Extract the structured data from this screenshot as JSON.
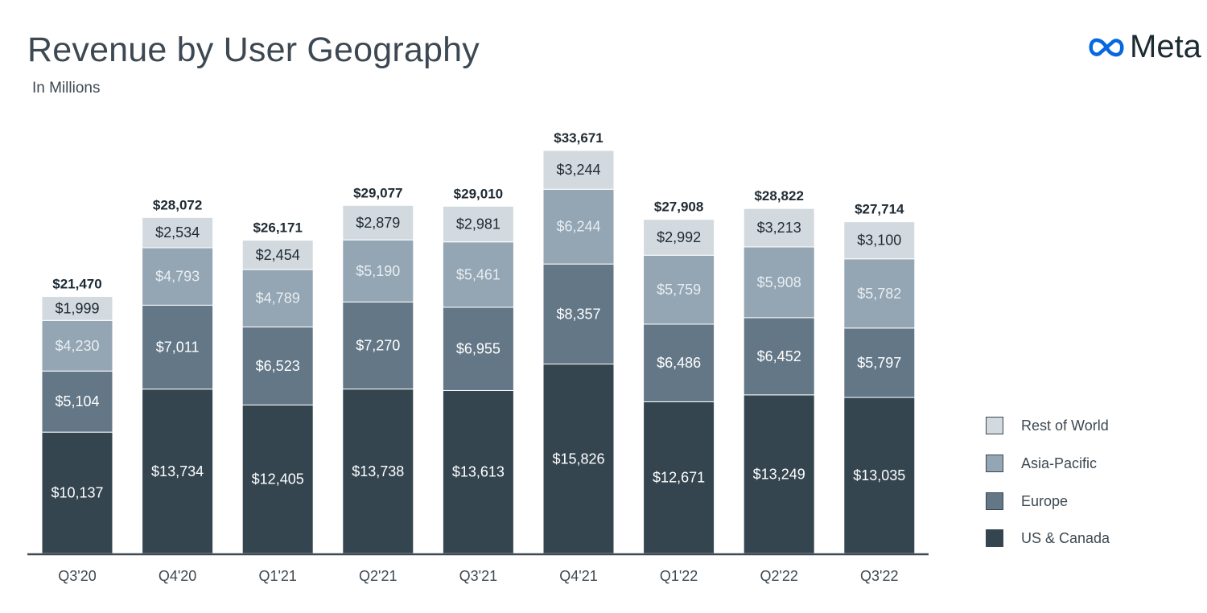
{
  "header": {
    "title": "Revenue by User Geography",
    "subtitle": "In Millions",
    "logo_text": "Meta"
  },
  "colors": {
    "us_canada": "#344550",
    "europe": "#637787",
    "asia_pacific": "#94a5b3",
    "rest_of_world": "#d3dadf",
    "axis": "#3d4852",
    "text_dark": "#1e2a33",
    "text_light": "#ffffff",
    "text_light_muted": "#e8eef2",
    "logo_blue": "#0668e1"
  },
  "chart_data": {
    "type": "bar",
    "stacked": true,
    "title": "Revenue by User Geography",
    "subtitle": "In Millions",
    "categories": [
      "Q3'20",
      "Q4'20",
      "Q1'21",
      "Q2'21",
      "Q3'21",
      "Q4'21",
      "Q1'22",
      "Q2'22",
      "Q3'22"
    ],
    "series": [
      {
        "name": "US & Canada",
        "values": [
          10137,
          13734,
          12405,
          13738,
          13613,
          15826,
          12671,
          13249,
          13035
        ],
        "labels": [
          "$10,137",
          "$13,734",
          "$12,405",
          "$13,738",
          "$13,613",
          "$15,826",
          "$12,671",
          "$13,249",
          "$13,035"
        ]
      },
      {
        "name": "Europe",
        "values": [
          5104,
          7011,
          6523,
          7270,
          6955,
          8357,
          6486,
          6452,
          5797
        ],
        "labels": [
          "$5,104",
          "$7,011",
          "$6,523",
          "$7,270",
          "$6,955",
          "$8,357",
          "$6,486",
          "$6,452",
          "$5,797"
        ]
      },
      {
        "name": "Asia-Pacific",
        "values": [
          4230,
          4793,
          4789,
          5190,
          5461,
          6244,
          5759,
          5908,
          5782
        ],
        "labels": [
          "$4,230",
          "$4,793",
          "$4,789",
          "$5,190",
          "$5,461",
          "$6,244",
          "$5,759",
          "$5,908",
          "$5,782"
        ]
      },
      {
        "name": "Rest of World",
        "values": [
          1999,
          2534,
          2454,
          2879,
          2981,
          3244,
          2992,
          3213,
          3100
        ],
        "labels": [
          "$1,999",
          "$2,534",
          "$2,454",
          "$2,879",
          "$2,981",
          "$3,244",
          "$2,992",
          "$3,213",
          "$3,100"
        ]
      }
    ],
    "totals": [
      21470,
      28072,
      26171,
      29077,
      29010,
      33671,
      27908,
      28822,
      27714
    ],
    "total_labels": [
      "$21,470",
      "$28,072",
      "$26,171",
      "$29,077",
      "$29,010",
      "$33,671",
      "$27,908",
      "$28,822",
      "$27,714"
    ],
    "ylim": [
      0,
      34000
    ],
    "grid": false,
    "legend_position": "right",
    "legend_order": [
      "Rest of World",
      "Asia-Pacific",
      "Europe",
      "US & Canada"
    ]
  }
}
